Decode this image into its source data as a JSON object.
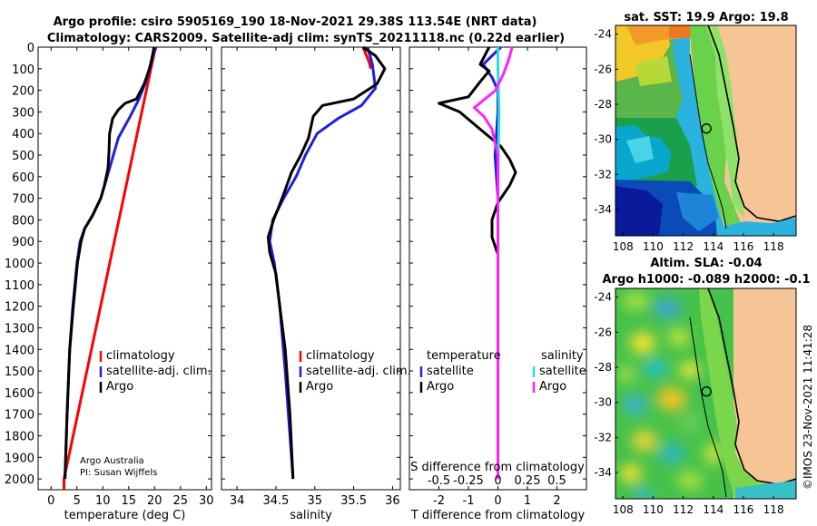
{
  "header": {
    "title_line1": "Argo profile: csiro 5905169_190 18-Nov-2021 29.38S 113.54E (NRT data)",
    "title_line2": "Climatology: CARS2009. Satellite-adj clim: synTS_20211118.nc (0.22d earlier)"
  },
  "credits": {
    "line1": "Argo Australia",
    "line2": "PI: Susan Wijffels",
    "stamp": "©IMOS 23-Nov-2021 11:41:28"
  },
  "colors": {
    "climatology": "#ff0000",
    "satellite": "#1f1fe0",
    "argo": "#000000",
    "t_diff": "#1f1fe0",
    "s_diff_sat": "#22e0e0",
    "s_diff_argo": "#ff22ff"
  },
  "chart_data": [
    {
      "type": "line",
      "name": "temperature-profile",
      "xlabel": "temperature (deg C)",
      "ylabel": "",
      "xlim": [
        -2.5,
        31
      ],
      "ylim": [
        2050,
        0
      ],
      "xticks": [
        0,
        5,
        10,
        15,
        20,
        25,
        30
      ],
      "yticks": [
        0,
        100,
        200,
        300,
        400,
        500,
        600,
        700,
        800,
        900,
        1000,
        1100,
        1200,
        1300,
        1400,
        1500,
        1600,
        1700,
        1800,
        1900,
        2000
      ],
      "legend": [
        "climatology",
        "satellite-adj. clim.",
        "Argo"
      ],
      "series": [
        {
          "name": "climatology",
          "points": [
            [
              20.3,
              0
            ],
            [
              20.0,
              20
            ],
            [
              2.5,
              2000
            ],
            [
              2.5,
              2050
            ]
          ]
        },
        {
          "name": "satellite-adj. clim.",
          "points": [
            [
              20.3,
              0
            ],
            [
              19.9,
              20
            ],
            [
              19.3,
              80
            ],
            [
              18.3,
              160
            ],
            [
              17.0,
              240
            ],
            [
              15.3,
              320
            ],
            [
              13.0,
              420
            ],
            [
              11.8,
              520
            ],
            [
              10.6,
              620
            ],
            [
              9.6,
              700
            ],
            [
              8.0,
              780
            ],
            [
              6.5,
              840
            ],
            [
              5.6,
              900
            ],
            [
              5.0,
              1000
            ],
            [
              4.2,
              1200
            ],
            [
              3.6,
              1400
            ],
            [
              3.1,
              1700
            ],
            [
              2.7,
              2000
            ]
          ]
        },
        {
          "name": "Argo",
          "points": [
            [
              19.9,
              0
            ],
            [
              19.5,
              50
            ],
            [
              19.0,
              100
            ],
            [
              18.0,
              170
            ],
            [
              16.5,
              240
            ],
            [
              14.3,
              260
            ],
            [
              13.0,
              290
            ],
            [
              11.9,
              330
            ],
            [
              11.3,
              400
            ],
            [
              11.2,
              480
            ],
            [
              11.0,
              560
            ],
            [
              10.3,
              640
            ],
            [
              9.6,
              700
            ],
            [
              8.0,
              780
            ],
            [
              6.5,
              840
            ],
            [
              5.8,
              900
            ],
            [
              5.1,
              1000
            ],
            [
              4.3,
              1200
            ],
            [
              3.6,
              1400
            ],
            [
              3.1,
              1700
            ],
            [
              2.7,
              2000
            ]
          ]
        }
      ]
    },
    {
      "type": "line",
      "name": "salinity-profile",
      "xlabel": "salinity",
      "ylabel": "",
      "xlim": [
        33.8,
        36.1
      ],
      "ylim": [
        2050,
        0
      ],
      "xticks": [
        34,
        34.5,
        35,
        35.5,
        36
      ],
      "xtick_labels": [
        "34",
        "34.5",
        "35",
        "35.5",
        "36"
      ],
      "legend": [
        "climatology",
        "satellite-adj. clim.",
        "Argo"
      ],
      "series": [
        {
          "name": "climatology",
          "points": [
            [
              35.62,
              0
            ],
            [
              35.7,
              70
            ],
            [
              35.72,
              100
            ]
          ]
        },
        {
          "name": "satellite-adj. clim.",
          "points": [
            [
              35.68,
              0
            ],
            [
              35.74,
              80
            ],
            [
              35.78,
              190
            ],
            [
              35.6,
              270
            ],
            [
              35.3,
              330
            ],
            [
              35.03,
              400
            ],
            [
              34.88,
              500
            ],
            [
              34.76,
              600
            ],
            [
              34.6,
              700
            ],
            [
              34.46,
              800
            ],
            [
              34.42,
              900
            ],
            [
              34.48,
              1000
            ],
            [
              34.55,
              1200
            ],
            [
              34.62,
              1500
            ],
            [
              34.68,
              1800
            ],
            [
              34.72,
              2000
            ]
          ]
        },
        {
          "name": "Argo",
          "points": [
            [
              35.62,
              0
            ],
            [
              35.78,
              40
            ],
            [
              35.9,
              100
            ],
            [
              35.8,
              170
            ],
            [
              35.5,
              240
            ],
            [
              35.1,
              270
            ],
            [
              34.98,
              320
            ],
            [
              34.92,
              420
            ],
            [
              34.82,
              500
            ],
            [
              34.7,
              580
            ],
            [
              34.58,
              700
            ],
            [
              34.47,
              800
            ],
            [
              34.4,
              880
            ],
            [
              34.42,
              950
            ],
            [
              34.5,
              1050
            ],
            [
              34.55,
              1200
            ],
            [
              34.62,
              1400
            ],
            [
              34.68,
              1700
            ],
            [
              34.72,
              2000
            ]
          ]
        }
      ]
    },
    {
      "type": "line",
      "name": "difference-profile",
      "xlabel": "T difference from climatology",
      "xlabel_top": "S difference from climatology",
      "xlim": [
        -3,
        3
      ],
      "ylim": [
        2050,
        0
      ],
      "xticks": [
        -2,
        -1,
        0,
        1,
        2
      ],
      "s_ticks": [
        -0.5,
        -0.25,
        0,
        0.25,
        0.5
      ],
      "s_tick_labels": [
        "-0.5",
        "-0.25",
        "0",
        "0.25",
        "0.5"
      ],
      "legend_temperature": {
        "title": "temperature",
        "items": [
          "satellite",
          "Argo"
        ]
      },
      "legend_salinity": {
        "title": "salinity",
        "items": [
          "satellite",
          "Argo"
        ]
      },
      "series": [
        {
          "name": "T satellite",
          "points": [
            [
              0.1,
              0
            ],
            [
              -0.2,
              40
            ],
            [
              -0.5,
              80
            ],
            [
              -0.2,
              140
            ],
            [
              0.0,
              200
            ],
            [
              0.0,
              300
            ],
            [
              -0.1,
              500
            ],
            [
              0.0,
              700
            ],
            [
              0.0,
              1000
            ],
            [
              0.0,
              2000
            ]
          ]
        },
        {
          "name": "T Argo",
          "points": [
            [
              -0.3,
              0
            ],
            [
              -0.6,
              80
            ],
            [
              -0.3,
              110
            ],
            [
              -0.6,
              160
            ],
            [
              -1.0,
              230
            ],
            [
              -2.0,
              260
            ],
            [
              -1.3,
              300
            ],
            [
              -0.6,
              380
            ],
            [
              0.1,
              460
            ],
            [
              0.4,
              520
            ],
            [
              0.6,
              580
            ],
            [
              0.4,
              640
            ],
            [
              0.0,
              720
            ],
            [
              -0.2,
              800
            ],
            [
              -0.2,
              880
            ],
            [
              0.0,
              960
            ],
            [
              0.0,
              2000
            ]
          ]
        },
        {
          "name": "S satellite",
          "points": [
            [
              0.0,
              0
            ],
            [
              0.0,
              100
            ],
            [
              0.01,
              300
            ],
            [
              0.0,
              600
            ],
            [
              0.0,
              1000
            ],
            [
              0.0,
              2000
            ]
          ]
        },
        {
          "name": "S Argo",
          "points": [
            [
              0.12,
              0
            ],
            [
              0.09,
              60
            ],
            [
              0.05,
              120
            ],
            [
              -0.02,
              200
            ],
            [
              -0.2,
              280
            ],
            [
              -0.12,
              320
            ],
            [
              -0.05,
              380
            ],
            [
              0.0,
              500
            ],
            [
              0.0,
              800
            ],
            [
              0.0,
              1200
            ],
            [
              0.0,
              2000
            ]
          ]
        }
      ]
    },
    {
      "type": "heatmap",
      "name": "sst-map",
      "title": "sat. SST: 19.9 Argo: 19.8",
      "xlim": [
        107.5,
        119.5
      ],
      "ylim": [
        -35.5,
        -23.5
      ],
      "xticks": [
        108,
        110,
        112,
        114,
        116,
        118
      ],
      "yticks": [
        -24,
        -26,
        -28,
        -30,
        -32,
        -34
      ],
      "argo_position": {
        "lon": 113.54,
        "lat": -29.38
      }
    },
    {
      "type": "heatmap",
      "name": "sla-map",
      "title_line1": "Altim. SLA: -0.04",
      "title_line2": "Argo h1000: -0.089 h2000: -0.1",
      "xlim": [
        107.5,
        119.5
      ],
      "ylim": [
        -35.5,
        -23.5
      ],
      "xticks": [
        108,
        110,
        112,
        114,
        116,
        118
      ],
      "yticks": [
        -24,
        -26,
        -28,
        -30,
        -32,
        -34
      ],
      "argo_position": {
        "lon": 113.54,
        "lat": -29.38
      }
    }
  ]
}
